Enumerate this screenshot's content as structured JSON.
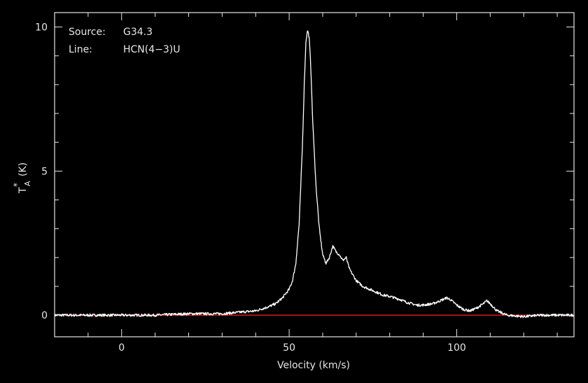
{
  "chart_data": {
    "type": "line",
    "xlabel": "Velocity (km/s)",
    "ylabel_main": "T",
    "ylabel_sup": "*",
    "ylabel_sub": "A",
    "ylabel_unit": "(K)",
    "xlim": [
      -20,
      135
    ],
    "ylim": [
      -0.75,
      10.5
    ],
    "xticks": [
      0,
      50,
      100
    ],
    "yticks": [
      0,
      5,
      10
    ],
    "annotations": {
      "source_label": "Source:",
      "source_value": "G34.3",
      "line_label": "Line:",
      "line_value": "HCN(4−3)U"
    },
    "baseline": {
      "y": 0,
      "color": "#ff2020"
    },
    "series": [
      {
        "color": "#ffffff",
        "x": [
          -20,
          -10,
          0,
          10,
          20,
          30,
          35,
          40,
          44,
          46,
          48,
          50,
          51,
          52,
          53,
          54,
          54.5,
          55,
          55.5,
          56,
          56.5,
          57,
          58,
          59,
          60,
          61,
          62,
          63,
          64,
          65,
          66,
          67,
          68,
          70,
          72,
          75,
          78,
          80,
          83,
          85,
          88,
          90,
          93,
          95,
          97,
          98,
          100,
          102,
          104,
          106,
          108,
          109,
          110,
          112,
          115,
          120,
          125,
          130,
          135
        ],
        "y": [
          0,
          0,
          0,
          0,
          0.05,
          0.05,
          0.1,
          0.15,
          0.3,
          0.4,
          0.6,
          0.9,
          1.2,
          1.8,
          3.2,
          6.0,
          8.0,
          9.5,
          9.9,
          9.6,
          8.5,
          6.8,
          4.5,
          3.0,
          2.1,
          1.8,
          2.0,
          2.4,
          2.2,
          2.1,
          1.9,
          2.0,
          1.6,
          1.2,
          1.0,
          0.85,
          0.7,
          0.65,
          0.55,
          0.45,
          0.35,
          0.35,
          0.4,
          0.5,
          0.6,
          0.55,
          0.35,
          0.2,
          0.15,
          0.25,
          0.4,
          0.5,
          0.4,
          0.15,
          0.0,
          -0.05,
          0.0,
          0.0,
          0.0
        ]
      }
    ]
  },
  "colors": {
    "background": "#000000",
    "frame": "#e6e6e6",
    "spectrum": "#ffffff",
    "baseline": "#ff2020"
  }
}
